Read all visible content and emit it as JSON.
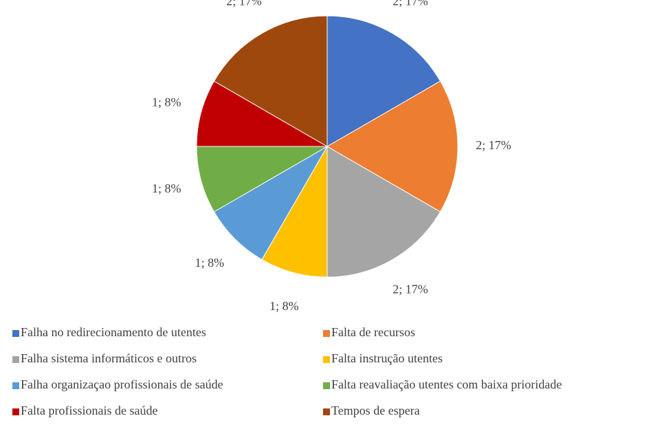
{
  "chart_data": {
    "type": "pie",
    "categories": [
      "Falha no redirecionamento de utentes",
      "Falta de recursos",
      "Falha sistema informáticos e outros",
      "Falta instrução utentes",
      "Falha organizaçao profissionais de saúde",
      "Falta reavaliação utentes com baixa prioridade",
      "Falta profissionais de saúde",
      "Tempos de espera"
    ],
    "values": [
      2,
      2,
      2,
      1,
      1,
      1,
      1,
      2
    ],
    "value_labels": [
      "2; 17%",
      "2; 17%",
      "2; 17%",
      "1; 8%",
      "1; 8%",
      "1; 8%",
      "1; 8%",
      "2; 17%"
    ],
    "colors": [
      "#4472c4",
      "#ed7d31",
      "#a5a5a5",
      "#ffc000",
      "#5b9bd5",
      "#70ad47",
      "#c00000",
      "#9e480e"
    ],
    "legend": "bottom"
  }
}
